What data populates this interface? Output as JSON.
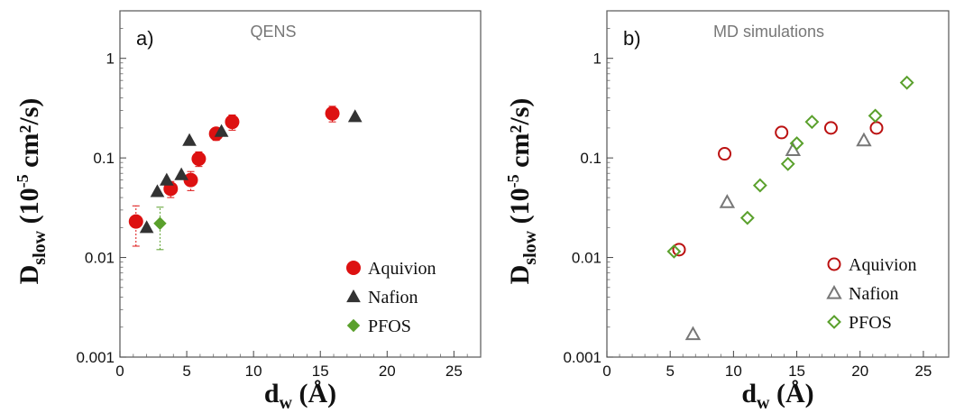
{
  "chart_data": [
    {
      "type": "scatter",
      "panel_label": "a)",
      "title": "QENS",
      "xlabel": "d",
      "xlabel_sub": "w",
      "xlabel_unit": " (Å)",
      "ylabel": "D",
      "ylabel_sub": "slow",
      "ylabel_unit_pre": " (10",
      "ylabel_unit_exp": "-5",
      "ylabel_unit_post": " cm²/s)",
      "xlim": [
        0,
        27
      ],
      "ylim": [
        0.001,
        3
      ],
      "yscale": "log",
      "x_ticks": [
        "0",
        "5",
        "10",
        "15",
        "20",
        "25"
      ],
      "y_ticks": [
        "0.001",
        "0.01",
        "0.1",
        "1"
      ],
      "legend_position": "bottom-right",
      "series": [
        {
          "name": "Aquivion",
          "marker": "circle-filled",
          "color": "#dd1111",
          "points": [
            {
              "x": 1.2,
              "y": 0.023,
              "err_lo": 0.013,
              "err_hi": 0.033
            },
            {
              "x": 3.8,
              "y": 0.049,
              "err_lo": 0.04,
              "err_hi": 0.058
            },
            {
              "x": 5.3,
              "y": 0.06,
              "err_lo": 0.047,
              "err_hi": 0.073
            },
            {
              "x": 5.9,
              "y": 0.098,
              "err_lo": 0.082,
              "err_hi": 0.115
            },
            {
              "x": 7.2,
              "y": 0.175,
              "err_lo": 0.15,
              "err_hi": 0.2
            },
            {
              "x": 8.4,
              "y": 0.23,
              "err_lo": 0.19,
              "err_hi": 0.27
            },
            {
              "x": 15.9,
              "y": 0.28,
              "err_lo": 0.23,
              "err_hi": 0.33
            }
          ]
        },
        {
          "name": "Nafion",
          "marker": "triangle-filled",
          "color": "#333333",
          "points": [
            {
              "x": 2.0,
              "y": 0.02
            },
            {
              "x": 2.8,
              "y": 0.046
            },
            {
              "x": 3.5,
              "y": 0.06
            },
            {
              "x": 4.6,
              "y": 0.068
            },
            {
              "x": 5.2,
              "y": 0.15
            },
            {
              "x": 7.6,
              "y": 0.185
            },
            {
              "x": 17.6,
              "y": 0.26
            }
          ]
        },
        {
          "name": "PFOS",
          "marker": "diamond-filled",
          "color": "#5aa02c",
          "points": [
            {
              "x": 3.0,
              "y": 0.022,
              "err_lo": 0.012,
              "err_hi": 0.032
            }
          ]
        }
      ]
    },
    {
      "type": "scatter",
      "panel_label": "b)",
      "title": "MD simulations",
      "xlabel": "d",
      "xlabel_sub": "w",
      "xlabel_unit": " (Å)",
      "ylabel": "D",
      "ylabel_sub": "slow",
      "ylabel_unit_pre": " (10",
      "ylabel_unit_exp": "-5",
      "ylabel_unit_post": " cm²/s)",
      "xlim": [
        0,
        27
      ],
      "ylim": [
        0.001,
        3
      ],
      "yscale": "log",
      "x_ticks": [
        "0",
        "5",
        "10",
        "15",
        "20",
        "25"
      ],
      "y_ticks": [
        "0.001",
        "0.01",
        "0.1",
        "1"
      ],
      "legend_position": "bottom-right",
      "series": [
        {
          "name": "Aquivion",
          "marker": "circle-open",
          "color": "#bb1111",
          "points": [
            {
              "x": 5.7,
              "y": 0.012
            },
            {
              "x": 9.3,
              "y": 0.11
            },
            {
              "x": 13.8,
              "y": 0.18
            },
            {
              "x": 17.7,
              "y": 0.2
            },
            {
              "x": 21.3,
              "y": 0.2
            }
          ]
        },
        {
          "name": "Nafion",
          "marker": "triangle-open",
          "color": "#777777",
          "points": [
            {
              "x": 6.8,
              "y": 0.0017
            },
            {
              "x": 9.5,
              "y": 0.036
            },
            {
              "x": 14.7,
              "y": 0.12
            },
            {
              "x": 20.3,
              "y": 0.15
            }
          ]
        },
        {
          "name": "PFOS",
          "marker": "diamond-open",
          "color": "#5aa02c",
          "points": [
            {
              "x": 5.3,
              "y": 0.0115
            },
            {
              "x": 11.1,
              "y": 0.025
            },
            {
              "x": 12.1,
              "y": 0.053
            },
            {
              "x": 14.3,
              "y": 0.087
            },
            {
              "x": 15.0,
              "y": 0.14
            },
            {
              "x": 16.2,
              "y": 0.23
            },
            {
              "x": 21.2,
              "y": 0.265
            },
            {
              "x": 23.7,
              "y": 0.57
            }
          ]
        }
      ]
    }
  ]
}
